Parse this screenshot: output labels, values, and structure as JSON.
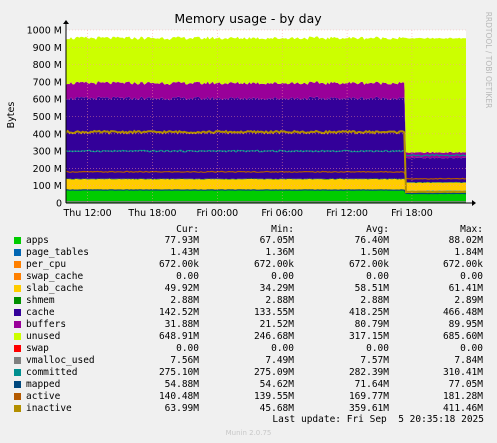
{
  "chart_data": {
    "type": "area",
    "title": "Memory usage - by day",
    "ylabel": "Bytes",
    "side_label": "RRDTOOL / TOBI OETIKER",
    "y_ticks": [
      "0",
      "100 M",
      "200 M",
      "300 M",
      "400 M",
      "500 M",
      "600 M",
      "700 M",
      "800 M",
      "900 M",
      "1000 M"
    ],
    "ylim": [
      0,
      1000
    ],
    "x_ticks": [
      "Thu 12:00",
      "Thu 18:00",
      "Fri 00:00",
      "Fri 06:00",
      "Fri 12:00",
      "Fri 18:00"
    ],
    "x_tick_hours": [
      12,
      18,
      24,
      30,
      36,
      42
    ],
    "x_range_hours": [
      10,
      47
    ],
    "reboot_hour": 41.3,
    "before": {
      "apps": 75,
      "page_tables": 1.4,
      "per_cpu": 0.7,
      "swap_cache": 0,
      "slab_cache": 60,
      "shmem": 2.9,
      "cache": 465,
      "buffers": 88,
      "unused": 260,
      "swap": 0,
      "vmalloc_used": 7.6,
      "committed": 300,
      "mapped": 75,
      "active": 180,
      "inactive": 410
    },
    "after": {
      "apps": 70,
      "page_tables": 1.4,
      "per_cpu": 0.7,
      "swap_cache": 0,
      "slab_cache": 45,
      "shmem": 2.9,
      "cache": 140,
      "buffers": 32,
      "unused": 660,
      "swap": 0,
      "vmalloc_used": 7.5,
      "committed": 275,
      "mapped": 55,
      "active": 140,
      "inactive": 64
    }
  },
  "legend_header": {
    "cur": "Cur:",
    "min": "Min:",
    "avg": "Avg:",
    "max": "Max:"
  },
  "legend": [
    {
      "name": "apps",
      "color": "#00cc00",
      "cur": "77.93M",
      "min": "67.05M",
      "avg": "76.40M",
      "max": "88.02M"
    },
    {
      "name": "page_tables",
      "color": "#0066b3",
      "cur": "1.43M",
      "min": "1.36M",
      "avg": "1.50M",
      "max": "1.84M"
    },
    {
      "name": "per_cpu",
      "color": "#ff8000",
      "cur": "672.00k",
      "min": "672.00k",
      "avg": "672.00k",
      "max": "672.00k"
    },
    {
      "name": "swap_cache",
      "color": "#ff8000",
      "cur": "0.00",
      "min": "0.00",
      "avg": "0.00",
      "max": "0.00"
    },
    {
      "name": "slab_cache",
      "color": "#ffcc00",
      "cur": "49.92M",
      "min": "34.29M",
      "avg": "58.51M",
      "max": "61.41M"
    },
    {
      "name": "shmem",
      "color": "#008f00",
      "cur": "2.88M",
      "min": "2.88M",
      "avg": "2.88M",
      "max": "2.89M"
    },
    {
      "name": "cache",
      "color": "#330099",
      "cur": "142.52M",
      "min": "133.55M",
      "avg": "418.25M",
      "max": "466.48M"
    },
    {
      "name": "buffers",
      "color": "#990099",
      "cur": "31.88M",
      "min": "21.52M",
      "avg": "80.79M",
      "max": "89.95M"
    },
    {
      "name": "unused",
      "color": "#ccff00",
      "cur": "648.91M",
      "min": "246.68M",
      "avg": "317.15M",
      "max": "685.60M"
    },
    {
      "name": "swap",
      "color": "#ff0000",
      "cur": "0.00",
      "min": "0.00",
      "avg": "0.00",
      "max": "0.00"
    },
    {
      "name": "vmalloc_used",
      "color": "#808080",
      "cur": "7.56M",
      "min": "7.49M",
      "avg": "7.57M",
      "max": "7.84M"
    },
    {
      "name": "committed",
      "color": "#008f8f",
      "cur": "275.10M",
      "min": "275.09M",
      "avg": "282.39M",
      "max": "310.41M"
    },
    {
      "name": "mapped",
      "color": "#00487d",
      "cur": "54.88M",
      "min": "54.62M",
      "avg": "71.64M",
      "max": "77.05M"
    },
    {
      "name": "active",
      "color": "#b35a00",
      "cur": "140.48M",
      "min": "139.55M",
      "avg": "169.77M",
      "max": "181.28M"
    },
    {
      "name": "inactive",
      "color": "#b38f00",
      "cur": "63.99M",
      "min": "45.68M",
      "avg": "359.61M",
      "max": "411.46M"
    }
  ],
  "last_update": "Last update: Fri Sep  5 20:35:18 2025",
  "munin_version": "Munin 2.0.75"
}
